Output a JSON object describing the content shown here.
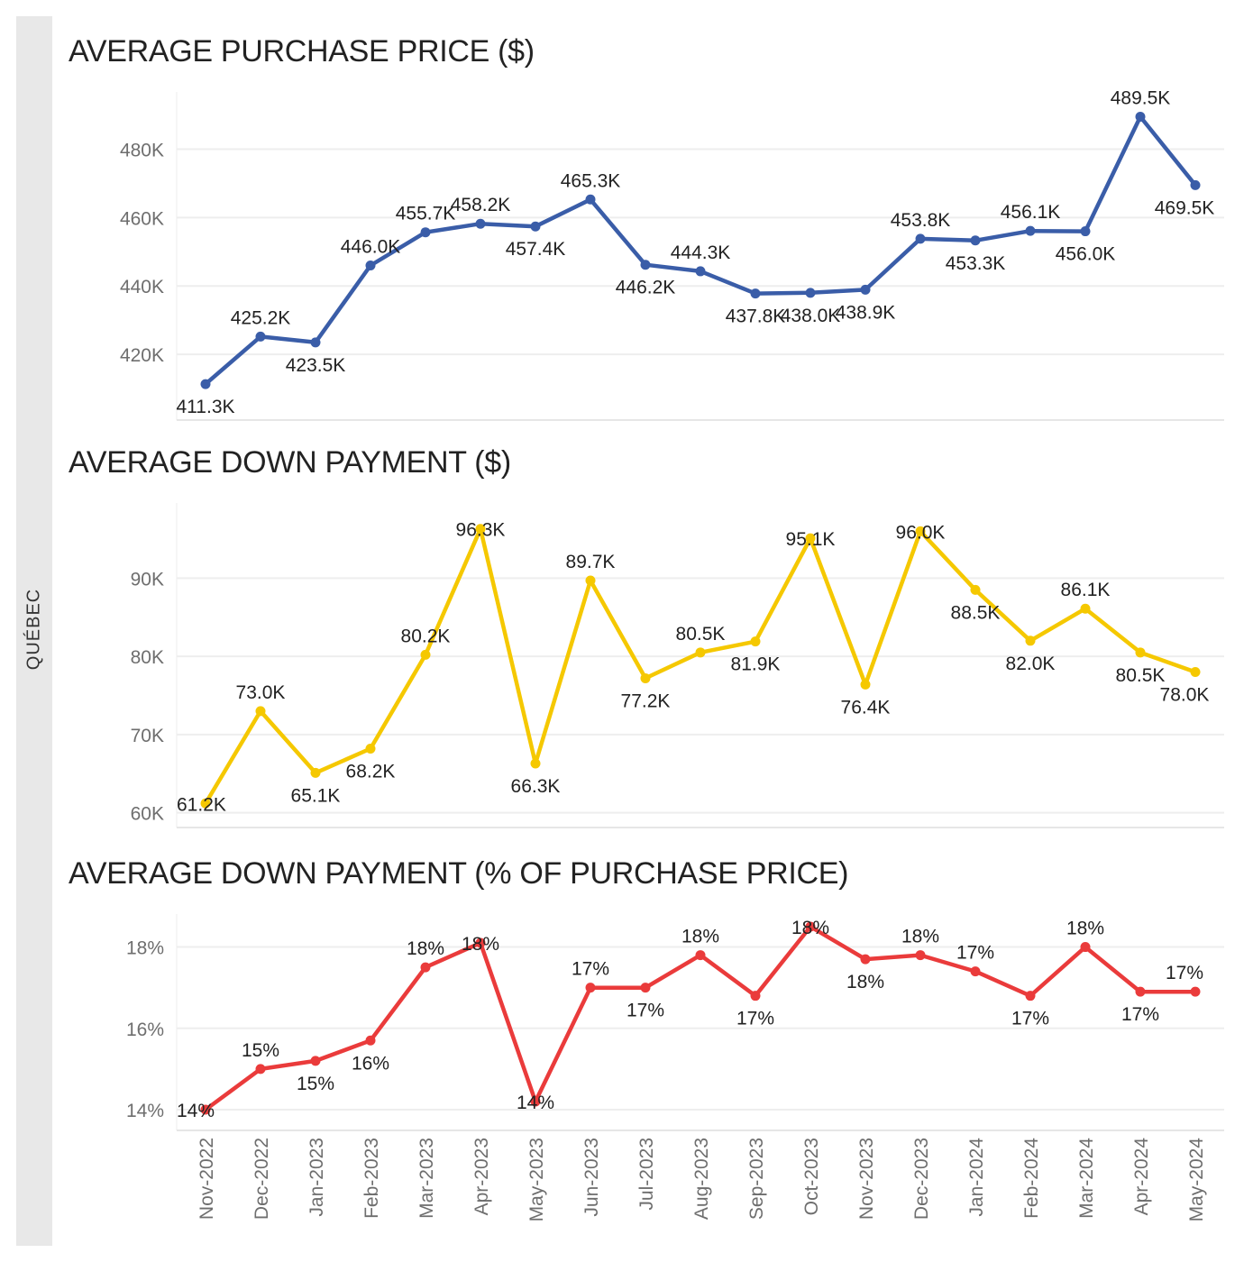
{
  "side_label": "QUÉBEC",
  "x_categories": [
    "Nov-2022",
    "Dec-2022",
    "Jan-2023",
    "Feb-2023",
    "Mar-2023",
    "Apr-2023",
    "May-2023",
    "Jun-2023",
    "Jul-2023",
    "Aug-2023",
    "Sep-2023",
    "Oct-2023",
    "Nov-2023",
    "Dec-2023",
    "Jan-2024",
    "Feb-2024",
    "Mar-2024",
    "Apr-2024",
    "May-2024"
  ],
  "chart_data": [
    {
      "type": "line",
      "title": "AVERAGE PURCHASE PRICE ($)",
      "color": "#3a5da8",
      "ylim": [
        405,
        492
      ],
      "yticks": [
        420,
        440,
        460,
        480
      ],
      "ytick_labels": [
        "420K",
        "440K",
        "460K",
        "480K"
      ],
      "values": [
        411.3,
        425.2,
        423.5,
        446.0,
        455.7,
        458.2,
        457.4,
        465.3,
        446.2,
        444.3,
        437.8,
        438.0,
        438.9,
        453.8,
        453.3,
        456.1,
        456.0,
        489.5,
        469.5
      ],
      "labels": [
        "411.3K",
        "425.2K",
        "423.5K",
        "446.0K",
        "455.7K",
        "458.2K",
        "457.4K",
        "465.3K",
        "446.2K",
        "444.3K",
        "437.8K",
        "438.0K",
        "438.9K",
        "453.8K",
        "453.3K",
        "456.1K",
        "456.0K",
        "489.5K",
        "469.5K"
      ],
      "label_pos": [
        "below",
        "above",
        "below",
        "above",
        "above",
        "above",
        "below",
        "above",
        "below",
        "above",
        "below",
        "below",
        "below",
        "above",
        "below",
        "above",
        "below",
        "above",
        "below"
      ],
      "grid": true
    },
    {
      "type": "line",
      "title": "AVERAGE DOWN PAYMENT ($)",
      "color": "#f5c800",
      "ylim": [
        59.5,
        98
      ],
      "yticks": [
        60,
        70,
        80,
        90
      ],
      "ytick_labels": [
        "60K",
        "70K",
        "80K",
        "90K"
      ],
      "values": [
        61.2,
        73.0,
        65.1,
        68.2,
        80.2,
        96.3,
        66.3,
        89.7,
        77.2,
        80.5,
        81.9,
        95.1,
        76.4,
        96.0,
        88.5,
        82.0,
        86.1,
        80.5,
        78.0
      ],
      "labels": [
        "61.2K",
        "73.0K",
        "65.1K",
        "68.2K",
        "80.2K",
        "96.3K",
        "66.3K",
        "89.7K",
        "77.2K",
        "80.5K",
        "81.9K",
        "95.1K",
        "76.4K",
        "96.0K",
        "88.5K",
        "82.0K",
        "86.1K",
        "80.5K",
        "78.0K"
      ],
      "label_pos": [
        "at",
        "above",
        "below",
        "below",
        "above",
        "at",
        "below",
        "above",
        "below",
        "above",
        "below",
        "at",
        "below",
        "at",
        "below",
        "below",
        "above",
        "below",
        "below"
      ],
      "grid": true
    },
    {
      "type": "line",
      "title": "AVERAGE DOWN PAYMENT (% OF PURCHASE PRICE)",
      "color": "#ea3b3b",
      "ylim": [
        13.8,
        18.5
      ],
      "yticks": [
        14,
        16,
        18
      ],
      "ytick_labels": [
        "14%",
        "16%",
        "18%"
      ],
      "values": [
        14.0,
        15.0,
        15.2,
        15.7,
        17.5,
        18.1,
        14.2,
        17.0,
        17.0,
        17.8,
        16.8,
        18.5,
        17.7,
        17.8,
        17.4,
        16.8,
        18.0,
        16.9,
        16.9
      ],
      "labels": [
        "14%",
        "15%",
        "15%",
        "16%",
        "18%",
        "18%",
        "14%",
        "17%",
        "17%",
        "18%",
        "17%",
        "18%",
        "18%",
        "18%",
        "17%",
        "17%",
        "18%",
        "17%",
        "17%"
      ],
      "label_pos": [
        "at",
        "above",
        "below",
        "below",
        "above",
        "at",
        "at",
        "above",
        "below",
        "above",
        "below",
        "at",
        "below",
        "above",
        "above",
        "below",
        "above",
        "below",
        "above"
      ],
      "grid": true
    }
  ]
}
